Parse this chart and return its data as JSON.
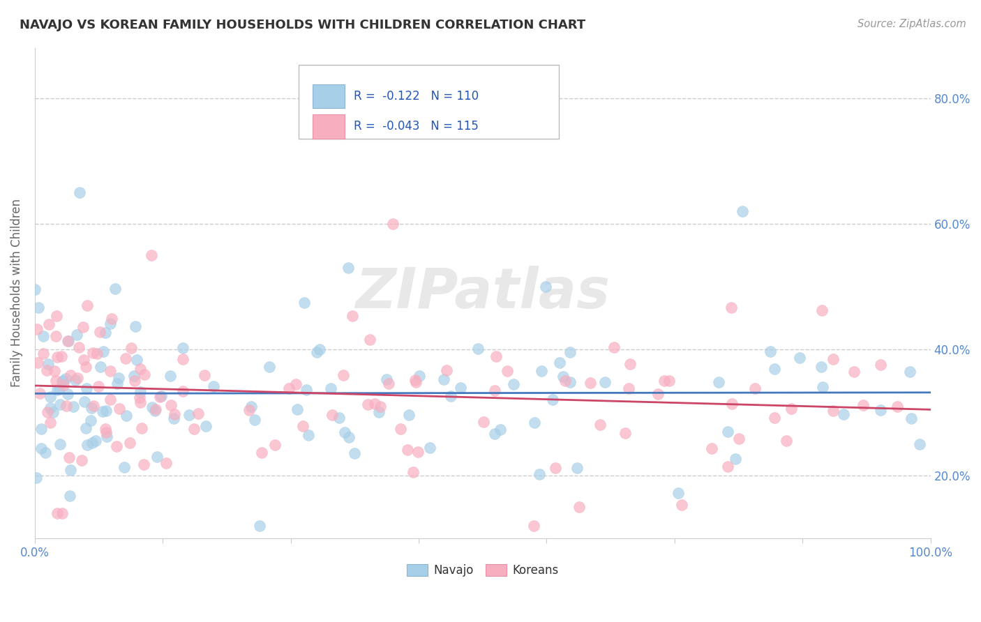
{
  "title": "NAVAJO VS KOREAN FAMILY HOUSEHOLDS WITH CHILDREN CORRELATION CHART",
  "source": "Source: ZipAtlas.com",
  "ylabel": "Family Households with Children",
  "xlim": [
    0.0,
    100.0
  ],
  "ylim": [
    10.0,
    88.0
  ],
  "xticks": [
    0,
    14.286,
    28.571,
    42.857,
    57.143,
    71.429,
    85.714,
    100
  ],
  "xtick_labels_show": [
    "0.0%",
    "",
    "",
    "",
    "",
    "",
    "",
    "100.0%"
  ],
  "yticks": [
    20,
    40,
    60,
    80
  ],
  "ytick_labels": [
    "20.0%",
    "40.0%",
    "60.0%",
    "80.0%"
  ],
  "navajo_color": "#a8cfe8",
  "korean_color": "#f7afc0",
  "navajo_line_color": "#4477bb",
  "korean_line_color": "#cc4466",
  "navajo_R": -0.122,
  "navajo_N": 110,
  "korean_R": -0.043,
  "korean_N": 115,
  "watermark": "ZIPatlas",
  "background_color": "#ffffff",
  "grid_color": "#cccccc",
  "title_color": "#333333",
  "label_color": "#666666",
  "tick_color": "#5588cc",
  "legend_text_color": "#2255bb",
  "source_color": "#999999"
}
